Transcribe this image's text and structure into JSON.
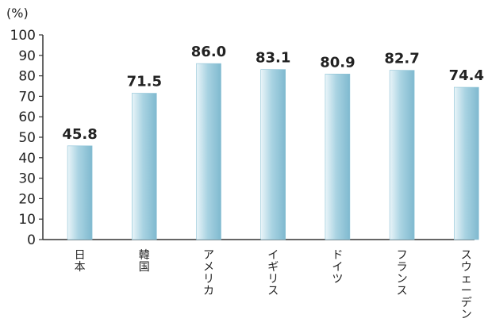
{
  "chart_data": {
    "type": "bar",
    "unit_label": "(%)",
    "categories": [
      "日本",
      "韓国",
      "アメリカ",
      "イギリス",
      "ドイツ",
      "フランス",
      "スウェーデン"
    ],
    "values": [
      45.8,
      71.5,
      86.0,
      83.1,
      80.9,
      82.7,
      74.4
    ],
    "value_labels": [
      "45.8",
      "71.5",
      "86.0",
      "83.1",
      "80.9",
      "82.7",
      "74.4"
    ],
    "ylim": [
      0,
      100
    ],
    "yticks": [
      0,
      10,
      20,
      30,
      40,
      50,
      60,
      70,
      80,
      90,
      100
    ],
    "ytick_labels": [
      "0",
      "10",
      "20",
      "30",
      "40",
      "50",
      "60",
      "70",
      "80",
      "90",
      "100"
    ],
    "grid": false,
    "legend": "none",
    "bar_color_light": "#eaf5f9",
    "bar_color_mid": "#a9d3e2",
    "bar_color_dark": "#7fb9cf"
  }
}
